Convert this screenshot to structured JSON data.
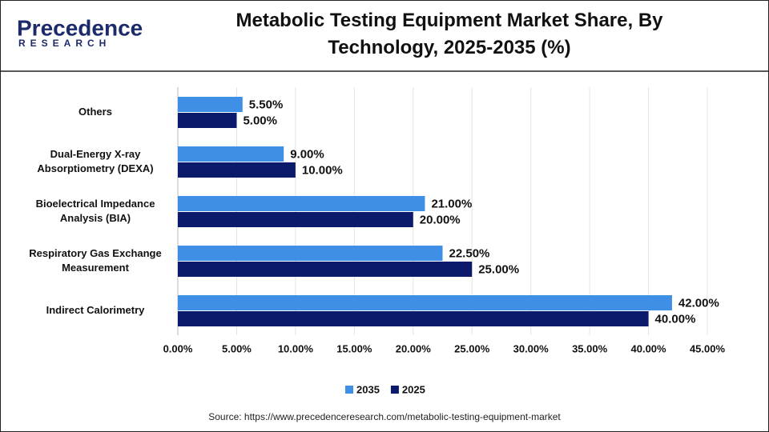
{
  "logo": {
    "name": "Precedence",
    "tagline": "RESEARCH"
  },
  "chart_data": {
    "type": "hbar",
    "title": "Metabolic Testing Equipment Market Share, By Technology, 2025-2035 (%)",
    "categories": [
      "Others",
      "Dual-Energy X-ray Absorptiometry (DEXA)",
      "Bioelectrical Impedance Analysis (BIA)",
      "Respiratory Gas Exchange Measurement",
      "Indirect Calorimetry"
    ],
    "series": [
      {
        "name": "2035",
        "color": "#3f8fe6",
        "values": [
          5.5,
          9,
          21,
          22.5,
          42
        ],
        "value_labels": [
          "5.50%",
          "9.00%",
          "21.00%",
          "22.50%",
          "42.00%"
        ]
      },
      {
        "name": "2025",
        "color": "#0c1a6b",
        "values": [
          5,
          10,
          20,
          25,
          40
        ],
        "value_labels": [
          "5.00%",
          "10.00%",
          "20.00%",
          "25.00%",
          "40.00%"
        ]
      }
    ],
    "xlim": [
      0,
      45
    ],
    "xticks": [
      {
        "value": 0,
        "label": "0.00%"
      },
      {
        "value": 5,
        "label": "5.00%"
      },
      {
        "value": 10,
        "label": "10.00%"
      },
      {
        "value": 15,
        "label": "15.00%"
      },
      {
        "value": 20,
        "label": "20.00%"
      },
      {
        "value": 25,
        "label": "25.00%"
      },
      {
        "value": 30,
        "label": "30.00%"
      },
      {
        "value": 35,
        "label": "35.00%"
      },
      {
        "value": 40,
        "label": "40.00%"
      },
      {
        "value": 45,
        "label": "45.00%"
      }
    ],
    "grid": true,
    "legend": "bottom",
    "source": "Source: https://www.precedenceresearch.com/metabolic-testing-equipment-market"
  }
}
